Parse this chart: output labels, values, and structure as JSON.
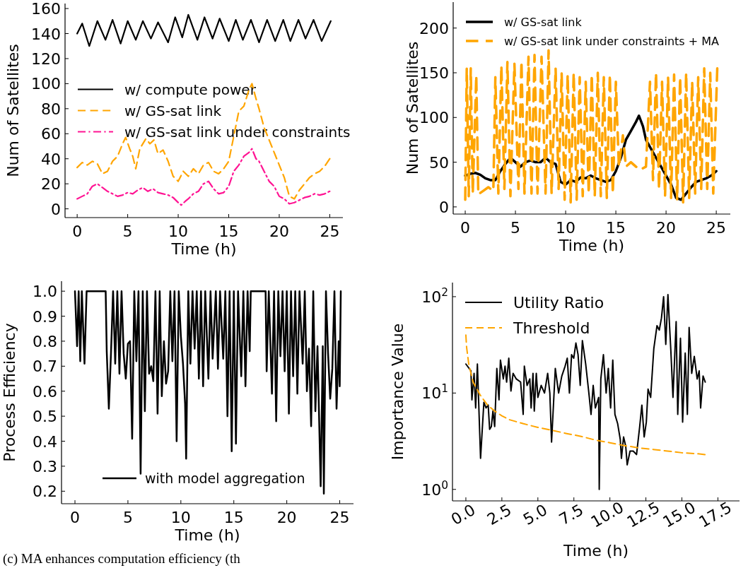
{
  "chart_data": [
    {
      "type": "line",
      "xlabel": "Time (h)",
      "ylabel": "Num of Satellites",
      "xlim": [
        -1.2,
        26.3
      ],
      "ylim": [
        -7,
        164
      ],
      "xticks": [
        0,
        5,
        10,
        15,
        20,
        25
      ],
      "yticks": [
        0,
        20,
        40,
        60,
        80,
        100,
        120,
        140,
        160
      ],
      "legend": "center left",
      "series": [
        {
          "name": "w/ compute power",
          "color": "#000000",
          "line_style": "solid",
          "x": [
            0,
            0.5,
            1.2,
            2.0,
            2.8,
            3.5,
            4.3,
            5.0,
            5.8,
            6.5,
            7.3,
            8.0,
            9.0,
            9.7,
            10.4,
            11.0,
            11.9,
            12.6,
            13.4,
            14.1,
            15.0,
            15.7,
            16.4,
            17.2,
            18.0,
            18.8,
            19.6,
            20.4,
            21.1,
            21.9,
            22.6,
            23.4,
            24.2,
            25.1
          ],
          "values": [
            140,
            148,
            130,
            150,
            135,
            151,
            132,
            150,
            135,
            150,
            136,
            149,
            133,
            153,
            137,
            155,
            135,
            153,
            136,
            152,
            134,
            151,
            135,
            151,
            133,
            151,
            134,
            151,
            134,
            151,
            136,
            151,
            134,
            150
          ]
        },
        {
          "name": "w/ GS-sat link",
          "color": "#ffa500",
          "line_style": "dashed",
          "x": [
            0,
            0.5,
            1,
            1.5,
            2,
            2.5,
            3,
            3.5,
            4,
            4.5,
            4.8,
            5.2,
            5.5,
            5.8,
            6.2,
            6.8,
            7.2,
            7.6,
            8,
            8.5,
            9,
            9.5,
            10,
            10.5,
            11,
            11.5,
            12,
            12.5,
            13,
            13.5,
            14,
            14.5,
            15,
            15.5,
            16,
            16.5,
            17,
            17.3,
            17.7,
            18,
            18.5,
            19,
            19.5,
            20,
            20.5,
            21,
            21.5,
            22,
            22.5,
            23,
            23.5,
            24,
            24.5,
            25
          ],
          "values": [
            33,
            37,
            35,
            38,
            36,
            28,
            30,
            38,
            42,
            52,
            57,
            48,
            42,
            32,
            48,
            56,
            52,
            55,
            44,
            47,
            38,
            26,
            22,
            30,
            26,
            32,
            28,
            35,
            37,
            30,
            28,
            32,
            38,
            58,
            78,
            82,
            95,
            100,
            88,
            80,
            65,
            55,
            45,
            35,
            25,
            10,
            8,
            15,
            20,
            25,
            28,
            30,
            34,
            40
          ]
        },
        {
          "name": "w/ GS-sat link under constraints",
          "color": "#ff1493",
          "line_style": "dashdot",
          "x": [
            0,
            0.5,
            1,
            1.5,
            2,
            2.5,
            3,
            3.5,
            4,
            4.5,
            5,
            5.5,
            6,
            6.5,
            7,
            7.5,
            8,
            8.5,
            9,
            9.5,
            10,
            10.3,
            10.7,
            11,
            11.5,
            12,
            12.5,
            13,
            13.5,
            14,
            14.5,
            15,
            15.5,
            16,
            16.5,
            17,
            17.3,
            17.7,
            18,
            18.5,
            19,
            19.5,
            20,
            20.5,
            21,
            21.5,
            22,
            22.5,
            23,
            23.5,
            24,
            24.5,
            25
          ],
          "values": [
            8,
            10,
            12,
            18,
            20,
            17,
            14,
            12,
            10,
            11,
            13,
            12,
            15,
            17,
            14,
            16,
            13,
            12,
            11,
            9,
            5,
            3,
            6,
            8,
            12,
            14,
            20,
            22,
            16,
            12,
            13,
            18,
            30,
            35,
            42,
            45,
            48,
            40,
            38,
            30,
            22,
            18,
            10,
            8,
            4,
            5,
            7,
            9,
            10,
            12,
            11,
            12,
            14
          ]
        }
      ]
    },
    {
      "type": "line",
      "xlabel": "Time (h)",
      "ylabel": "Num of Satellites",
      "xlim": [
        -1.2,
        26.4
      ],
      "ylim": [
        -8,
        229
      ],
      "xticks": [
        0,
        5,
        10,
        15,
        20,
        25
      ],
      "yticks": [
        0,
        50,
        100,
        150,
        200
      ],
      "legend": "top left",
      "series": [
        {
          "name": "w/ GS-sat link",
          "color": "#000000",
          "line_style": "solid",
          "x": [
            0,
            0.5,
            1,
            1.5,
            2,
            2.5,
            3,
            3.5,
            4,
            4.5,
            5,
            5.5,
            6,
            6.5,
            7,
            7.5,
            8,
            8.5,
            9,
            9.5,
            10,
            10.5,
            11,
            11.5,
            12,
            12.5,
            13,
            13.5,
            14,
            14.5,
            15,
            15.5,
            16,
            16.5,
            17,
            17.3,
            17.7,
            18,
            18.5,
            19,
            19.5,
            20,
            20.5,
            21,
            21.5,
            22,
            22.5,
            23,
            23.5,
            24,
            24.5,
            25
          ],
          "values": [
            35,
            37,
            38,
            36,
            32,
            30,
            30,
            40,
            48,
            55,
            50,
            45,
            50,
            52,
            50,
            50,
            55,
            50,
            48,
            28,
            25,
            30,
            28,
            33,
            32,
            35,
            32,
            30,
            28,
            30,
            40,
            55,
            75,
            85,
            95,
            102,
            90,
            75,
            65,
            55,
            45,
            35,
            25,
            10,
            8,
            15,
            22,
            28,
            30,
            32,
            35,
            40
          ]
        },
        {
          "name": "w/ GS-sat link under constraints + MA",
          "color": "#ffa500",
          "line_style": "dashed",
          "x": [
            0,
            0.15,
            0.35,
            0.55,
            0.75,
            1.1,
            1.3,
            1.8,
            2.3,
            2.8,
            3.0,
            3.3,
            3.6,
            3.9,
            4.2,
            4.5,
            4.9,
            5.3,
            5.6,
            5.9,
            6.3,
            6.6,
            6.9,
            7.2,
            7.6,
            8.0,
            8.3,
            8.6,
            9.0,
            9.3,
            9.6,
            9.9,
            10.2,
            10.5,
            10.8,
            11.1,
            11.4,
            11.7,
            12.0,
            12.3,
            12.6,
            12.9,
            13.2,
            13.5,
            13.8,
            14.1,
            14.4,
            14.7,
            15.0,
            15.3,
            15.7,
            16.0,
            16.5,
            17.0,
            17.5,
            18.0,
            18.4,
            18.7,
            19.0,
            19.3,
            19.6,
            19.9,
            20.2,
            20.5,
            20.8,
            21.1,
            21.4,
            21.7,
            22.0,
            22.3,
            22.6,
            22.9,
            23.2,
            23.5,
            23.8,
            24.1,
            24.4,
            24.7,
            25.1
          ],
          "values": [
            8,
            155,
            12,
            155,
            15,
            147,
            14,
            18,
            22,
            18,
            145,
            15,
            158,
            20,
            162,
            12,
            160,
            20,
            163,
            15,
            168,
            15,
            170,
            15,
            168,
            15,
            175,
            15,
            155,
            20,
            150,
            8,
            148,
            5,
            150,
            8,
            145,
            12,
            140,
            15,
            148,
            12,
            150,
            12,
            145,
            10,
            148,
            15,
            140,
            45,
            80,
            45,
            50,
            45,
            42,
            45,
            140,
            30,
            150,
            20,
            140,
            12,
            145,
            10,
            148,
            8,
            145,
            5,
            150,
            10,
            140,
            15,
            145,
            20,
            155,
            20,
            150,
            15,
            155
          ]
        }
      ]
    },
    {
      "type": "line",
      "xlabel": "Time (h)",
      "ylabel": "Process Efficiency",
      "xlim": [
        -1.27,
        26.3
      ],
      "ylim": [
        0.15,
        1.04
      ],
      "xticks": [
        0,
        5,
        10,
        15,
        20,
        25
      ],
      "yticks": [
        {
          "value": 0.2,
          "label": "0.2"
        },
        {
          "value": 0.3,
          "label": "0.3"
        },
        {
          "value": 0.4,
          "label": "0.4"
        },
        {
          "value": 0.5,
          "label": "0.5"
        },
        {
          "value": 0.6,
          "label": "0.6"
        },
        {
          "value": 0.7,
          "label": "0.7"
        },
        {
          "value": 0.8,
          "label": "0.8"
        },
        {
          "value": 0.9,
          "label": "0.9"
        },
        {
          "value": 1,
          "label": "1.0"
        }
      ],
      "legend": "bottom left",
      "annotations": [
        "(c) MA enhances computation efficiency (th"
      ],
      "series": [
        {
          "name": "with model aggregation",
          "color": "#000000",
          "line_style": "solid",
          "x": [
            0,
            0.2,
            0.35,
            0.5,
            0.65,
            0.9,
            1.1,
            2.9,
            3.0,
            3.2,
            3.4,
            3.6,
            3.8,
            4.0,
            4.2,
            4.4,
            4.6,
            4.8,
            5.0,
            5.2,
            5.4,
            5.6,
            5.8,
            6.0,
            6.2,
            6.4,
            6.6,
            6.8,
            7.0,
            7.2,
            7.4,
            7.6,
            7.8,
            8.0,
            8.2,
            8.4,
            8.6,
            8.8,
            9.0,
            9.2,
            9.4,
            9.6,
            9.8,
            10.0,
            10.2,
            10.4,
            10.5,
            10.7,
            10.9,
            11.1,
            11.3,
            11.5,
            11.7,
            11.9,
            12.1,
            12.3,
            12.6,
            12.8,
            13.0,
            13.3,
            13.5,
            13.7,
            14.0,
            14.2,
            14.4,
            14.6,
            14.8,
            15.0,
            15.2,
            15.4,
            15.7,
            15.9,
            16.1,
            16.3,
            16.5,
            16.6,
            18.0,
            18.1,
            18.3,
            18.6,
            18.8,
            19.0,
            19.2,
            19.4,
            19.6,
            19.8,
            20.0,
            20.2,
            20.4,
            20.6,
            20.8,
            21.0,
            21.2,
            21.5,
            21.7,
            21.9,
            22.1,
            22.3,
            22.5,
            22.7,
            22.9,
            23.2,
            23.4,
            23.5,
            23.7,
            23.9,
            24.1,
            24.3,
            24.5,
            24.7,
            24.9,
            25.0,
            25.1
          ],
          "values": [
            1,
            0.78,
            1,
            0.72,
            1,
            0.71,
            1,
            1,
            0.76,
            0.53,
            0.75,
            1,
            0.71,
            1,
            0.67,
            1,
            0.75,
            0.65,
            0.79,
            0.8,
            0.41,
            1,
            0.72,
            1,
            0.27,
            1,
            0.52,
            1,
            0.67,
            0.7,
            0.64,
            1,
            0.51,
            1,
            0.58,
            0.8,
            0.63,
            0.68,
            1,
            0.72,
            1,
            0.4,
            1,
            0.82,
            0.71,
            0.55,
            0.33,
            1,
            0.71,
            1,
            0.77,
            1,
            0.65,
            1,
            0.62,
            1,
            0.65,
            1,
            0.73,
            1,
            0.69,
            1,
            0.73,
            1,
            0.5,
            1,
            0.36,
            1,
            0.39,
            1,
            0.66,
            1,
            0.62,
            1,
            0.76,
            1,
            1,
            0.68,
            1,
            0.59,
            1,
            0.48,
            1,
            0.74,
            1,
            0.68,
            1,
            0.51,
            1,
            0.66,
            1,
            0.59,
            1,
            0.71,
            1,
            0.6,
            0.77,
            0.46,
            1,
            0.52,
            0.78,
            0.22,
            0.78,
            0.19,
            1,
            0.75,
            0.57,
            0.69,
            1,
            0.53,
            0.8,
            0.62,
            1
          ]
        }
      ]
    },
    {
      "type": "line",
      "xlabel": "Time (h)",
      "ylabel": "Importance Value",
      "log": true,
      "xlim": [
        -0.93,
        19.0
      ],
      "ylim": [
        0.76,
        140
      ],
      "xticks": [
        {
          "value": 0,
          "label": "0.0"
        },
        {
          "value": 2.5,
          "label": "2.5"
        },
        {
          "value": 5,
          "label": "5.0"
        },
        {
          "value": 7.5,
          "label": "7.5"
        },
        {
          "value": 10,
          "label": "10.0"
        },
        {
          "value": 12.5,
          "label": "12.5"
        },
        {
          "value": 15,
          "label": "15.0"
        },
        {
          "value": 17.5,
          "label": "17.5"
        }
      ],
      "yticks": [
        {
          "value": 1,
          "label": "10$^{0}$"
        },
        {
          "value": 10,
          "label": "10$^{1}$"
        },
        {
          "value": 100,
          "label": "10$^{2}$"
        }
      ],
      "legend": "top left",
      "series": [
        {
          "name": "Utility Ratio",
          "color": "#000000",
          "line_style": "solid",
          "x": [
            0,
            0.35,
            0.42,
            0.57,
            0.68,
            0.8,
            1.02,
            1.25,
            1.4,
            1.55,
            1.65,
            1.77,
            1.88,
            2.0,
            2.15,
            2.3,
            2.4,
            2.6,
            2.72,
            2.83,
            2.98,
            3.13,
            3.28,
            3.5,
            3.8,
            3.98,
            4.06,
            4.25,
            4.44,
            4.53,
            4.66,
            4.75,
            4.89,
            5.0,
            5.23,
            5.46,
            5.68,
            5.83,
            5.95,
            6.21,
            6.44,
            6.66,
            6.89,
            7.04,
            7.19,
            7.34,
            7.49,
            7.64,
            7.79,
            7.94,
            8.09,
            8.32,
            8.54,
            8.69,
            8.84,
            8.99,
            9.22,
            9.26,
            9.37,
            9.55,
            9.74,
            9.89,
            10.05,
            10.2,
            10.35,
            10.54,
            10.72,
            10.8,
            10.95,
            11.1,
            11.2,
            11.4,
            11.62,
            11.85,
            12.07,
            12.22,
            12.38,
            12.53,
            12.65,
            12.83,
            13.05,
            13.27,
            13.43,
            13.58,
            13.73,
            13.88,
            14.03,
            14.23,
            14.38,
            14.6,
            14.71,
            14.9,
            15.05,
            15.23,
            15.38,
            15.5,
            15.68,
            15.86,
            16.06,
            16.2,
            16.3,
            16.47,
            16.62
          ],
          "values": [
            20,
            17,
            8.5,
            16,
            7,
            20,
            2.1,
            8,
            7,
            7.5,
            4.2,
            4.5,
            6.5,
            4.5,
            18,
            8.5,
            22,
            14,
            19,
            13,
            23,
            10.5,
            16,
            14,
            13,
            6,
            19,
            12,
            14,
            7,
            16,
            6.5,
            16,
            9,
            12,
            10,
            16,
            10,
            3.1,
            18,
            10,
            15,
            19,
            23,
            10,
            25,
            23,
            33,
            25,
            12,
            35,
            20,
            10,
            6,
            12,
            7,
            9,
            1.0,
            14,
            25,
            10,
            18,
            7,
            22,
            6,
            4.8,
            3.3,
            2.1,
            3.5,
            2.8,
            1.8,
            2.5,
            2.5,
            2.3,
            4.5,
            7.5,
            3.5,
            5,
            11,
            9,
            29,
            50,
            45,
            60,
            100,
            32,
            105,
            28,
            9,
            55,
            6,
            37,
            5,
            26,
            6,
            48,
            16,
            24,
            14,
            17,
            7,
            15,
            13
          ]
        },
        {
          "name": "Threshold",
          "color": "#ffa500",
          "line_style": "dashed",
          "x": [
            0,
            0.05,
            0.2,
            0.5,
            1,
            1.5,
            2,
            2.5,
            3,
            4,
            5,
            6,
            7,
            8,
            9,
            10,
            11,
            12,
            13,
            14,
            15,
            16,
            16.6
          ],
          "values": [
            40,
            30,
            20,
            13,
            9.5,
            7.5,
            6.5,
            5.8,
            5.3,
            4.8,
            4.4,
            4.1,
            3.8,
            3.55,
            3.25,
            3.05,
            2.85,
            2.7,
            2.6,
            2.5,
            2.4,
            2.35,
            2.3
          ]
        }
      ]
    }
  ]
}
